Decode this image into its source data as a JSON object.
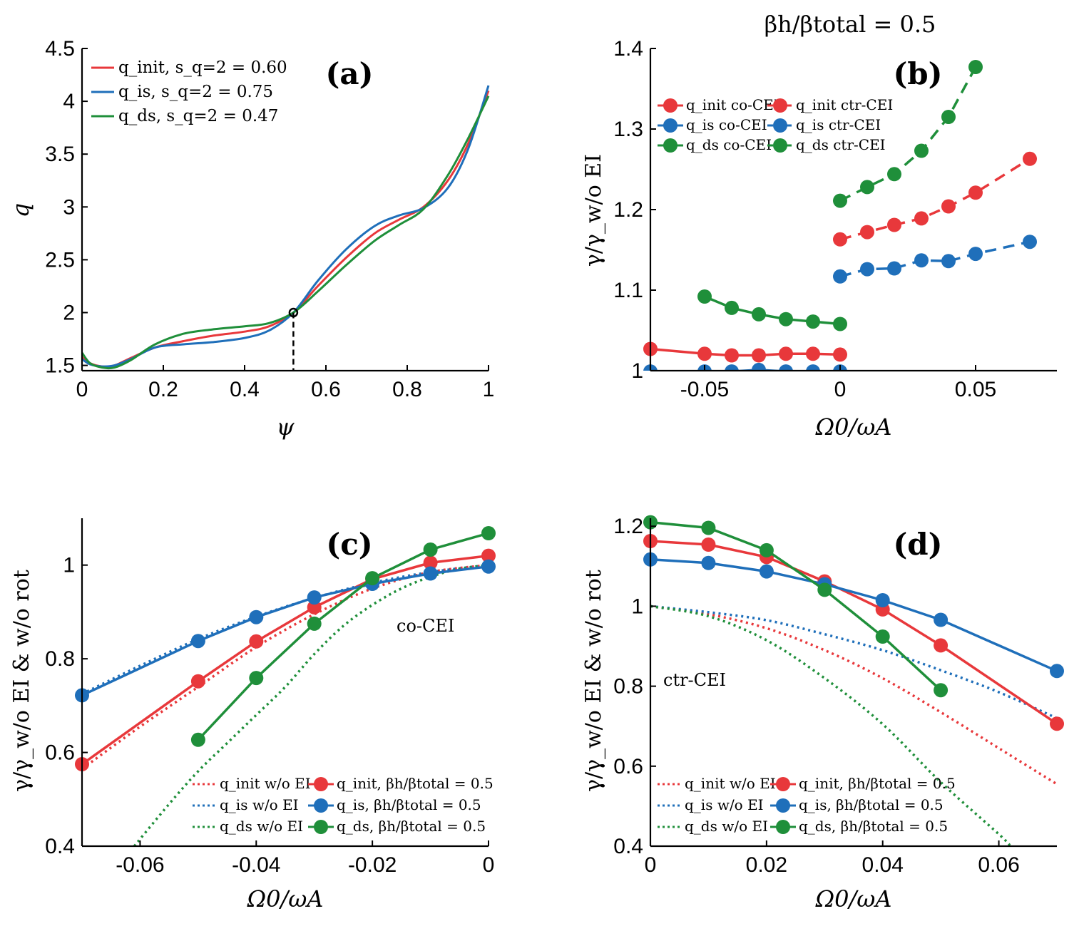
{
  "figure_title": "βh/βtotal = 0.5",
  "colors": {
    "init": "#e8383b",
    "is": "#1f6fba",
    "ds": "#1f8f3a"
  },
  "chart_data": [
    {
      "id": "a",
      "type": "line",
      "panel_label": "(a)",
      "xlabel": "ψ",
      "ylabel": "q",
      "xlim": [
        0,
        1
      ],
      "ylim": [
        1.45,
        4.5
      ],
      "xticks": [
        0,
        0.2,
        0.4,
        0.6,
        0.8,
        1
      ],
      "xtick_labels": [
        "0",
        "0.2",
        "0.4",
        "0.6",
        "0.8",
        "1"
      ],
      "yticks": [
        1.5,
        2,
        2.5,
        3,
        3.5,
        4,
        4.5
      ],
      "ytick_labels": [
        "1.5",
        "2",
        "2.5",
        "3",
        "3.5",
        "4",
        "4.5"
      ],
      "marker_point": {
        "x": 0.52,
        "y": 2.0
      },
      "series": [
        {
          "key": "init",
          "legend": "q_init,  s_q=2 = 0.60",
          "x": [
            0,
            0.02,
            0.05,
            0.08,
            0.12,
            0.18,
            0.25,
            0.32,
            0.4,
            0.46,
            0.52,
            0.58,
            0.65,
            0.72,
            0.78,
            0.84,
            0.9,
            0.95,
            1.0
          ],
          "y": [
            1.58,
            1.52,
            1.49,
            1.5,
            1.57,
            1.67,
            1.73,
            1.78,
            1.82,
            1.87,
            2.0,
            2.25,
            2.52,
            2.75,
            2.88,
            3.0,
            3.25,
            3.6,
            4.1
          ]
        },
        {
          "key": "is",
          "legend": "q_is,    s_q=2 = 0.75",
          "x": [
            0,
            0.02,
            0.05,
            0.08,
            0.12,
            0.18,
            0.25,
            0.32,
            0.4,
            0.46,
            0.52,
            0.58,
            0.65,
            0.72,
            0.78,
            0.84,
            0.9,
            0.95,
            1.0
          ],
          "y": [
            1.56,
            1.51,
            1.49,
            1.5,
            1.56,
            1.67,
            1.7,
            1.72,
            1.76,
            1.83,
            2.0,
            2.3,
            2.6,
            2.82,
            2.92,
            2.99,
            3.18,
            3.55,
            4.15
          ]
        },
        {
          "key": "ds",
          "legend": "q_ds,   s_q=2 = 0.47",
          "x": [
            0,
            0.02,
            0.05,
            0.08,
            0.12,
            0.18,
            0.25,
            0.32,
            0.4,
            0.46,
            0.52,
            0.58,
            0.65,
            0.72,
            0.78,
            0.84,
            0.9,
            0.95,
            1.0
          ],
          "y": [
            1.62,
            1.52,
            1.48,
            1.48,
            1.55,
            1.7,
            1.8,
            1.84,
            1.87,
            1.9,
            2.0,
            2.2,
            2.45,
            2.68,
            2.83,
            2.98,
            3.3,
            3.65,
            4.05
          ]
        }
      ]
    },
    {
      "id": "b",
      "type": "line",
      "panel_label": "(b)",
      "xlabel": "Ω0/ωA",
      "ylabel": "γ/γ_w/o EI",
      "xlim": [
        -0.07,
        0.08
      ],
      "ylim": [
        1.0,
        1.4
      ],
      "xticks": [
        -0.05,
        0,
        0.05
      ],
      "xtick_labels": [
        "-0.05",
        "0",
        "0.05"
      ],
      "yticks": [
        1,
        1.1,
        1.2,
        1.3,
        1.4
      ],
      "ytick_labels": [
        "1",
        "1.1",
        "1.2",
        "1.3",
        "1.4"
      ],
      "legend": [
        "q_init co-CEI",
        "q_is co-CEI",
        "q_ds co-CEI",
        "q_init ctr-CEI",
        "q_is ctr-CEI",
        "q_ds ctr-CEI"
      ],
      "series": [
        {
          "key": "init",
          "style": "solid",
          "name": "q_init co-CEI",
          "x": [
            -0.07,
            -0.05,
            -0.04,
            -0.03,
            -0.02,
            -0.01,
            0
          ],
          "y": [
            1.027,
            1.021,
            1.019,
            1.019,
            1.021,
            1.021,
            1.02
          ]
        },
        {
          "key": "is",
          "style": "solid",
          "name": "q_is co-CEI",
          "x": [
            -0.07,
            -0.05,
            -0.04,
            -0.03,
            -0.02,
            -0.01,
            0
          ],
          "y": [
            0.999,
            0.999,
            0.999,
            1.001,
            0.999,
            0.999,
            0.999
          ]
        },
        {
          "key": "ds",
          "style": "solid",
          "name": "q_ds co-CEI",
          "x": [
            -0.05,
            -0.04,
            -0.03,
            -0.02,
            -0.01,
            0
          ],
          "y": [
            1.092,
            1.078,
            1.07,
            1.064,
            1.061,
            1.058
          ]
        },
        {
          "key": "init",
          "style": "dashed",
          "name": "q_init ctr-CEI",
          "x": [
            0,
            0.01,
            0.02,
            0.03,
            0.04,
            0.05,
            0.07
          ],
          "y": [
            1.163,
            1.172,
            1.181,
            1.189,
            1.204,
            1.221,
            1.263
          ]
        },
        {
          "key": "is",
          "style": "dashed",
          "name": "q_is ctr-CEI",
          "x": [
            0,
            0.01,
            0.02,
            0.03,
            0.04,
            0.05,
            0.07
          ],
          "y": [
            1.117,
            1.126,
            1.127,
            1.137,
            1.136,
            1.145,
            1.16
          ]
        },
        {
          "key": "ds",
          "style": "dashed",
          "name": "q_ds ctr-CEI",
          "x": [
            0,
            0.01,
            0.02,
            0.03,
            0.04,
            0.05
          ],
          "y": [
            1.211,
            1.228,
            1.244,
            1.273,
            1.315,
            1.377
          ]
        }
      ]
    },
    {
      "id": "c",
      "type": "line",
      "panel_label": "(c)",
      "annotation": "co-CEI",
      "xlabel": "Ω0/ωA",
      "ylabel": "γ/γ_w/o EI & w/o rot",
      "xlim": [
        -0.07,
        0
      ],
      "ylim": [
        0.4,
        1.1
      ],
      "xticks": [
        -0.06,
        -0.04,
        -0.02,
        0
      ],
      "xtick_labels": [
        "-0.06",
        "-0.04",
        "-0.02",
        "0"
      ],
      "yticks": [
        0.4,
        0.6,
        0.8,
        1
      ],
      "ytick_labels": [
        "0.4",
        "0.6",
        "0.8",
        "1"
      ],
      "legend": [
        "q_init w/o EI",
        "q_is w/o EI",
        "q_ds w/o EI",
        "q_init, βh/βtotal = 0.5",
        "q_is, βh/βtotal = 0.5",
        "q_ds, βh/βtotal = 0.5"
      ],
      "series": [
        {
          "key": "init",
          "style": "dotted",
          "name": "q_init w/o EI",
          "x": [
            -0.07,
            -0.06,
            -0.05,
            -0.04,
            -0.03,
            -0.02,
            -0.01,
            0
          ],
          "y": [
            0.565,
            0.655,
            0.74,
            0.825,
            0.895,
            0.95,
            0.985,
            1.0
          ]
        },
        {
          "key": "is",
          "style": "dotted",
          "name": "q_is w/o EI",
          "x": [
            -0.07,
            -0.06,
            -0.05,
            -0.04,
            -0.03,
            -0.02,
            -0.01,
            0
          ],
          "y": [
            0.725,
            0.785,
            0.842,
            0.89,
            0.93,
            0.962,
            0.985,
            1.0
          ]
        },
        {
          "key": "ds",
          "style": "dotted",
          "name": "q_ds w/o EI",
          "x": [
            -0.061,
            -0.055,
            -0.05,
            -0.045,
            -0.04,
            -0.035,
            -0.03,
            -0.025,
            -0.02,
            -0.015,
            -0.01,
            -0.005,
            0
          ],
          "y": [
            0.4,
            0.49,
            0.56,
            0.62,
            0.68,
            0.74,
            0.81,
            0.87,
            0.915,
            0.95,
            0.975,
            0.992,
            1.0
          ]
        },
        {
          "key": "init",
          "style": "solid",
          "name": "q_init, βh/βtotal = 0.5",
          "x": [
            -0.07,
            -0.05,
            -0.04,
            -0.03,
            -0.02,
            -0.01,
            0
          ],
          "y": [
            0.575,
            0.752,
            0.837,
            0.91,
            0.97,
            1.005,
            1.02
          ]
        },
        {
          "key": "is",
          "style": "solid",
          "name": "q_is, βh/βtotal = 0.5",
          "x": [
            -0.07,
            -0.05,
            -0.04,
            -0.03,
            -0.02,
            -0.01,
            0
          ],
          "y": [
            0.722,
            0.838,
            0.889,
            0.931,
            0.96,
            0.982,
            0.997
          ]
        },
        {
          "key": "ds",
          "style": "solid",
          "name": "q_ds, βh/βtotal = 0.5",
          "x": [
            -0.05,
            -0.04,
            -0.03,
            -0.02,
            -0.01,
            0
          ],
          "y": [
            0.627,
            0.759,
            0.875,
            0.972,
            1.033,
            1.068
          ]
        }
      ]
    },
    {
      "id": "d",
      "type": "line",
      "panel_label": "(d)",
      "annotation": "ctr-CEI",
      "xlabel": "Ω0/ωA",
      "ylabel": "γ/γ_w/o EI & w/o rot",
      "xlim": [
        0,
        0.07
      ],
      "ylim": [
        0.4,
        1.22
      ],
      "xticks": [
        0,
        0.02,
        0.04,
        0.06
      ],
      "xtick_labels": [
        "0",
        "0.02",
        "0.04",
        "0.06"
      ],
      "yticks": [
        0.4,
        0.6,
        0.8,
        1,
        1.2
      ],
      "ytick_labels": [
        "0.4",
        "0.6",
        "0.8",
        "1",
        "1.2"
      ],
      "legend": [
        "q_init w/o EI",
        "q_is w/o EI",
        "q_ds w/o EI",
        "q_init, βh/βtotal = 0.5",
        "q_is, βh/βtotal = 0.5",
        "q_ds, βh/βtotal = 0.5"
      ],
      "series": [
        {
          "key": "init",
          "style": "dotted",
          "name": "q_init w/o EI",
          "x": [
            0,
            0.01,
            0.02,
            0.03,
            0.04,
            0.05,
            0.06,
            0.07
          ],
          "y": [
            1.0,
            0.98,
            0.945,
            0.89,
            0.82,
            0.735,
            0.645,
            0.555
          ]
        },
        {
          "key": "is",
          "style": "dotted",
          "name": "q_is w/o EI",
          "x": [
            0,
            0.01,
            0.02,
            0.03,
            0.04,
            0.05,
            0.06,
            0.07
          ],
          "y": [
            1.0,
            0.985,
            0.965,
            0.93,
            0.89,
            0.84,
            0.785,
            0.72
          ]
        },
        {
          "key": "ds",
          "style": "dotted",
          "name": "q_ds w/o EI",
          "x": [
            0,
            0.01,
            0.02,
            0.03,
            0.04,
            0.05,
            0.06,
            0.062
          ],
          "y": [
            1.0,
            0.975,
            0.915,
            0.82,
            0.705,
            0.56,
            0.43,
            0.4
          ]
        },
        {
          "key": "init",
          "style": "solid",
          "name": "q_init, βh/βtotal = 0.5",
          "x": [
            0,
            0.01,
            0.02,
            0.03,
            0.04,
            0.05,
            0.07
          ],
          "y": [
            1.163,
            1.154,
            1.123,
            1.062,
            0.992,
            0.902,
            0.706
          ]
        },
        {
          "key": "is",
          "style": "solid",
          "name": "q_is, βh/βtotal = 0.5",
          "x": [
            0,
            0.01,
            0.02,
            0.03,
            0.04,
            0.05,
            0.07
          ],
          "y": [
            1.117,
            1.108,
            1.087,
            1.055,
            1.015,
            0.966,
            0.838
          ]
        },
        {
          "key": "ds",
          "style": "solid",
          "name": "q_ds, βh/βtotal = 0.5",
          "x": [
            0,
            0.01,
            0.02,
            0.03,
            0.04,
            0.05
          ],
          "y": [
            1.21,
            1.196,
            1.14,
            1.041,
            0.924,
            0.79
          ]
        }
      ]
    }
  ]
}
